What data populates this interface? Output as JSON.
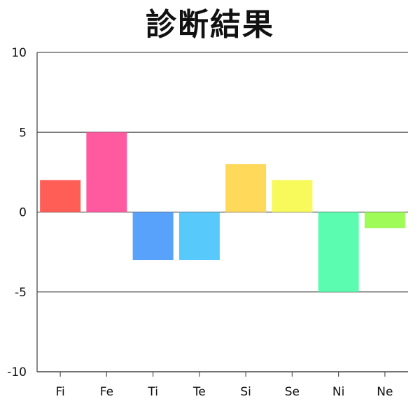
{
  "title": "診断結果",
  "chart_data": {
    "type": "bar",
    "title": "診断結果",
    "categories": [
      "Fi",
      "Fe",
      "Ti",
      "Te",
      "Si",
      "Se",
      "Ni",
      "Ne"
    ],
    "values": [
      2,
      5,
      -3,
      -3,
      3,
      2,
      -5,
      -1
    ],
    "colors": [
      "#ff5e57",
      "#ff5aa0",
      "#58a2fb",
      "#58c9fb",
      "#ffd95a",
      "#f8f95a",
      "#5cfcb0",
      "#9efb58"
    ],
    "ylim": [
      -10,
      10
    ],
    "yticks": [
      10,
      5,
      0,
      -5,
      -10
    ],
    "ytick_labels": [
      "10",
      "5",
      "0",
      "-5",
      "-10"
    ],
    "grid": true,
    "xlabel": "",
    "ylabel": ""
  }
}
